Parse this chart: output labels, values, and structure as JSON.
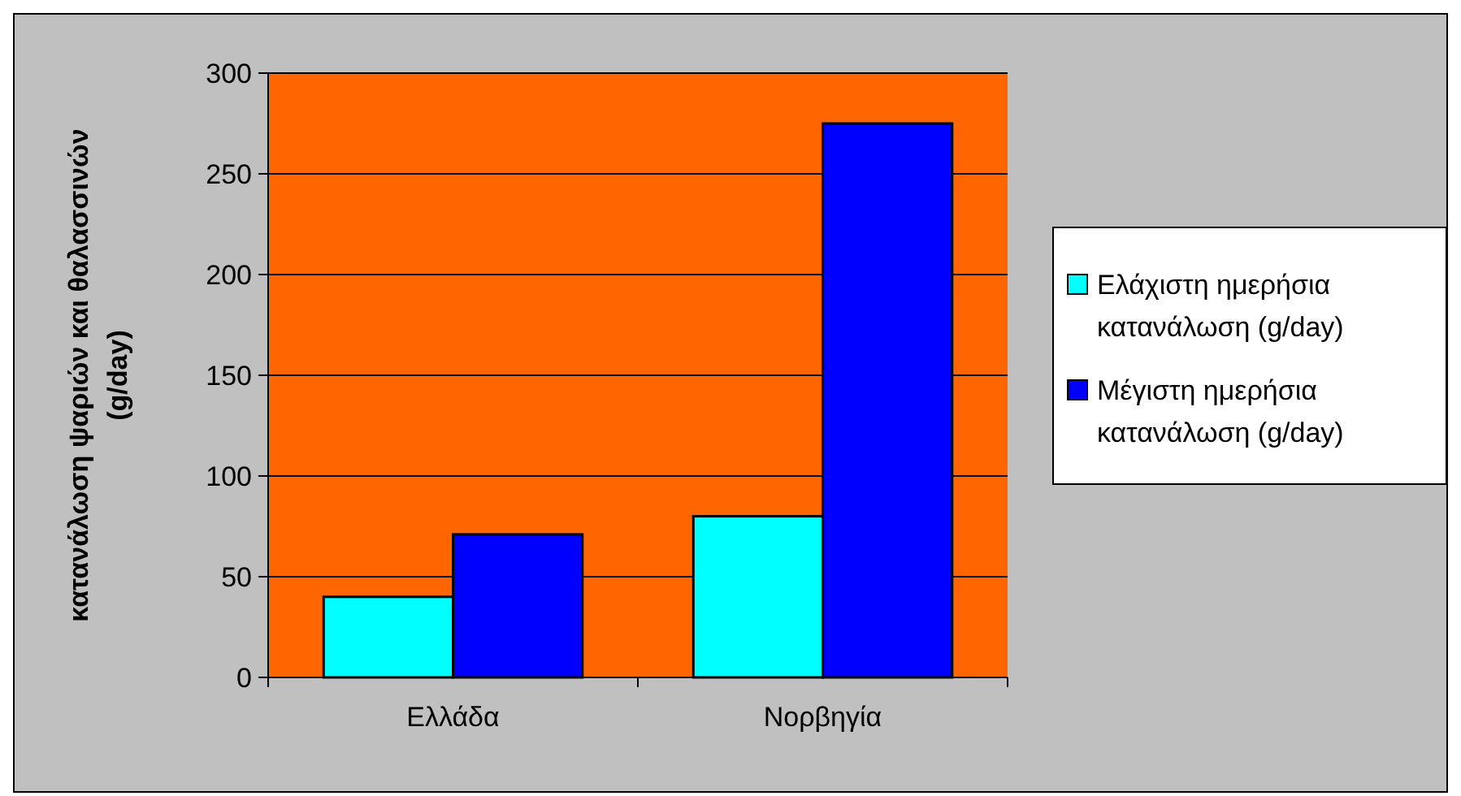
{
  "chart_data": {
    "type": "bar",
    "ylabel": "κατανάλωση ψαριών και θαλασσινών (g/day)",
    "categories": [
      "Ελλάδα",
      "Νορβηγία"
    ],
    "series": [
      {
        "name": "Ελάχιστη ημερήσια κατανάλωση (g/day)",
        "color": "#00ffff",
        "values": [
          40,
          80
        ]
      },
      {
        "name": "Μέγιστη ημερήσια κατανάλωση (g/day)",
        "color": "#0000ff",
        "values": [
          71,
          275
        ]
      }
    ],
    "ylim": [
      0,
      300
    ],
    "yticks": [
      0,
      50,
      100,
      150,
      200,
      250,
      300
    ],
    "grid": "y",
    "legend": "right"
  }
}
